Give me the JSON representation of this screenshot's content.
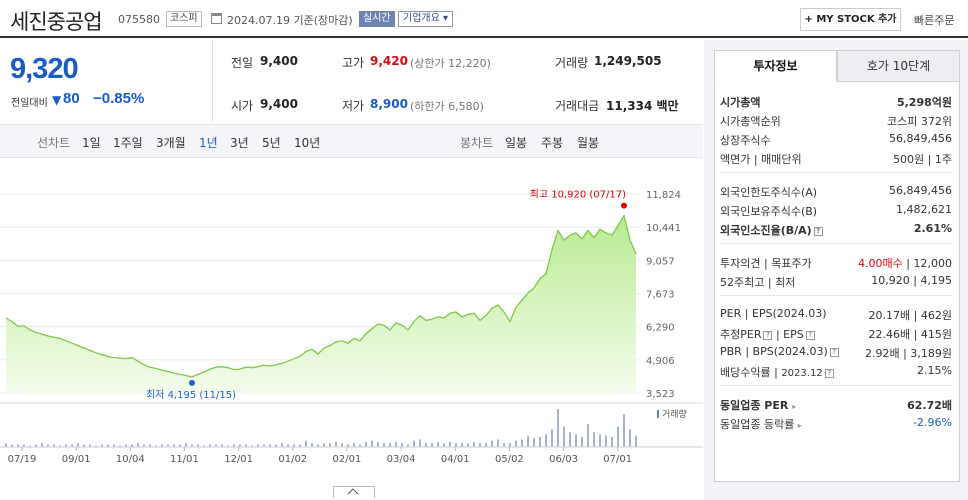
{
  "stock": {
    "name": "세진중공업",
    "code": "075580",
    "market": "코스피",
    "ref_date": "2024.07.19 기준(장마감)",
    "live_badge": "실시간",
    "overview_btn": "기업개요 ▾",
    "mystock_btn": "+ MY STOCK 추가",
    "quick_order": "빠른주문"
  },
  "price": {
    "current": "9,320",
    "change_label": "전일대비",
    "change_arrow": "▼",
    "change": "80",
    "change_rate": "−0.85%"
  },
  "quote": {
    "prev_label": "전일",
    "prev": "9,400",
    "open_label": "시가",
    "open": "9,400",
    "high_label": "고가",
    "high": "9,420",
    "upper_limit": "(상한가 12,220)",
    "low_label": "저가",
    "low": "8,900",
    "lower_limit": "(하한가 6,580)",
    "volume_label": "거래량",
    "volume": "1,249,505",
    "amount_label": "거래대금",
    "amount": "11,334 백만"
  },
  "tabs": {
    "line_label": "선차트",
    "line_tabs": [
      "1일",
      "1주일",
      "3개월",
      "1년",
      "3년",
      "5년",
      "10년"
    ],
    "active": "1년",
    "candle_label": "봉차트",
    "candle_tabs": [
      "일봉",
      "주봉",
      "월봉"
    ]
  },
  "chart_data": {
    "type": "area",
    "x_ticks": [
      "07/19",
      "09/01",
      "10/04",
      "11/01",
      "12/01",
      "01/02",
      "02/01",
      "03/04",
      "04/01",
      "05/02",
      "06/03",
      "07/01"
    ],
    "y_ticks": [
      3523,
      4906,
      6290,
      7673,
      9057,
      10441,
      11824
    ],
    "y_tick_labels": [
      "3,523",
      "4,906",
      "6,290",
      "7,673",
      "9,057",
      "10,441",
      "11,824"
    ],
    "ylim": [
      3523,
      11824
    ],
    "values": [
      6650,
      6500,
      6300,
      6320,
      6150,
      6050,
      5980,
      5900,
      5850,
      5800,
      5700,
      5600,
      5500,
      5400,
      5300,
      5200,
      5120,
      5050,
      5000,
      4980,
      4960,
      5000,
      4850,
      4700,
      4600,
      4550,
      4480,
      4420,
      4350,
      4300,
      4250,
      4195,
      4300,
      4400,
      4520,
      4600,
      4620,
      4580,
      4500,
      4520,
      4600,
      4580,
      4620,
      4680,
      4650,
      4700,
      4760,
      4850,
      4950,
      5050,
      5250,
      5350,
      5150,
      5400,
      5500,
      5650,
      5700,
      5600,
      5800,
      5700,
      6000,
      6200,
      6400,
      6350,
      6150,
      6450,
      6350,
      6150,
      6500,
      6750,
      6550,
      6600,
      6700,
      6650,
      6850,
      6900,
      6700,
      6800,
      6850,
      6550,
      6750,
      7050,
      7200,
      6900,
      6500,
      7100,
      7400,
      7700,
      7900,
      8300,
      8500,
      9500,
      10300,
      9900,
      10100,
      10200,
      9950,
      10300,
      10000,
      10350,
      10200,
      10100,
      10500,
      10920,
      9900,
      9320
    ],
    "volumes": [
      3,
      2,
      2,
      2,
      1,
      2,
      3,
      2,
      2,
      1,
      2,
      2,
      3,
      2,
      2,
      1,
      2,
      2,
      2,
      1,
      2,
      2,
      3,
      2,
      2,
      1,
      2,
      2,
      2,
      2,
      3,
      2,
      2,
      1,
      2,
      2,
      2,
      1,
      2,
      2,
      2,
      1,
      2,
      2,
      2,
      2,
      3,
      2,
      2,
      2,
      5,
      3,
      2,
      3,
      3,
      4,
      3,
      2,
      3,
      2,
      4,
      5,
      4,
      3,
      3,
      4,
      3,
      2,
      5,
      6,
      3,
      3,
      4,
      3,
      4,
      3,
      3,
      3,
      4,
      3,
      3,
      5,
      6,
      3,
      3,
      5,
      6,
      9,
      7,
      8,
      10,
      14,
      30,
      16,
      12,
      10,
      8,
      18,
      12,
      10,
      9,
      8,
      16,
      26,
      14,
      9
    ],
    "high_label": "최고 10,920 (07/17)",
    "low_label": "최저 4,195 (11/15)",
    "volume_label": "거래량",
    "grid": true,
    "colors": {
      "line": "#7ec84a",
      "fill_top": "#b9ea92",
      "fill_bottom": "#f4fcec",
      "high": "#e00000",
      "low": "#1f63c6",
      "volume": "#6f7fbf"
    }
  },
  "panel": {
    "tab_invest": "투자정보",
    "tab_hoga": "호가 10단계",
    "market_cap_label": "시가총액",
    "market_cap": "5,298억원",
    "cap_rank_label": "시가총액순위",
    "cap_rank": "코스피 372위",
    "shares_label": "상장주식수",
    "shares": "56,849,456",
    "par_label": "액면가",
    "unit_label": "매매단위",
    "par_unit": "500원 | 1주",
    "foreign_limit_label": "외국인한도주식수(A)",
    "foreign_limit": "56,849,456",
    "foreign_hold_label": "외국인보유주식수(B)",
    "foreign_hold": "1,482,621",
    "foreign_rate_label": "외국인소진율(B/A)",
    "foreign_rate": "2.61%",
    "opinion_label": "투자의견",
    "target_label": "목표주가",
    "opinion": "4.00매수",
    "target": "12,000",
    "w52_label": "52주최고",
    "w52_low_label": "최저",
    "w52_high": "10,920",
    "w52_low": "4,195",
    "per_label": "PER",
    "eps_label": "EPS(2024.03)",
    "per": "20.17배",
    "eps": "462원",
    "est_per_label": "추정PER",
    "est_eps_label": "EPS",
    "est_per": "22.46배",
    "est_eps": "415원",
    "pbr_label": "PBR",
    "bps_label": "BPS(2024.03)",
    "pbr": "2.92배",
    "bps": "3,189원",
    "div_label": "배당수익률",
    "div_date": "2023.12",
    "div": "2.15%",
    "sector_per_label": "동일업종 PER",
    "sector_per": "62.72배",
    "sector_rate_label": "동일업종 등락률",
    "sector_rate": "-2.96%"
  }
}
